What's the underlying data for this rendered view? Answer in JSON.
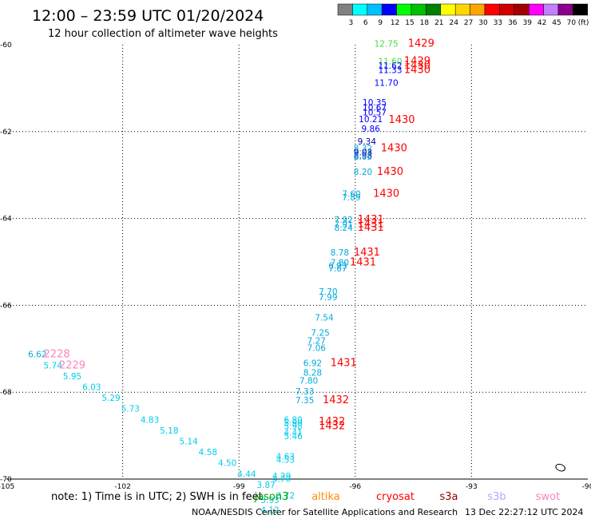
{
  "header": {
    "title": "12:00 – 23:59 UTC 01/20/2024",
    "subtitle": "12 hour collection of altimeter wave heights"
  },
  "legend": {
    "unit": "(ft)",
    "bins": [
      {
        "color": "#808080",
        "label": "3"
      },
      {
        "color": "#00ffff",
        "label": "6"
      },
      {
        "color": "#00bfff",
        "label": "9"
      },
      {
        "color": "#0000ff",
        "label": "12"
      },
      {
        "color": "#00ff00",
        "label": "15"
      },
      {
        "color": "#00c000",
        "label": "18"
      },
      {
        "color": "#008000",
        "label": "21"
      },
      {
        "color": "#ffff00",
        "label": "24"
      },
      {
        "color": "#ffd700",
        "label": "27"
      },
      {
        "color": "#ffa500",
        "label": "30"
      },
      {
        "color": "#ff0000",
        "label": "33"
      },
      {
        "color": "#d00000",
        "label": "36"
      },
      {
        "color": "#a00000",
        "label": "39"
      },
      {
        "color": "#ff00ff",
        "label": "42"
      },
      {
        "color": "#c080ff",
        "label": "45"
      },
      {
        "color": "#8b008b",
        "label": "70"
      },
      {
        "color": "#000000",
        "label": ""
      }
    ]
  },
  "axes": {
    "lon_ticks": [
      "-105",
      "-102",
      "-99",
      "-96",
      "-93",
      "-90"
    ],
    "lat_ticks": [
      "-60",
      "-62",
      "-64",
      "-66",
      "-68",
      "-70"
    ],
    "lon_range": [
      -105,
      -90
    ],
    "lat_range": [
      -60,
      -70
    ]
  },
  "chart_data": {
    "type": "scatter",
    "x_unit": "longitude",
    "y_unit": "latitude",
    "grid": true,
    "observations": [
      {
        "lon": -95.2,
        "lat": -60.05,
        "swh": "12.75",
        "color": "#44dd44"
      },
      {
        "lon": -95.1,
        "lat": -60.45,
        "swh": "11.60",
        "color": "#44dd44"
      },
      {
        "lon": -95.1,
        "lat": -60.55,
        "swh": "11.62",
        "color": "#0000ff"
      },
      {
        "lon": -95.1,
        "lat": -60.65,
        "swh": "11.33",
        "color": "#0000ff"
      },
      {
        "lon": -95.2,
        "lat": -60.95,
        "swh": "11.70",
        "color": "#0000ff"
      },
      {
        "lon": -95.5,
        "lat": -61.4,
        "swh": "10.35",
        "color": "#0000ff"
      },
      {
        "lon": -95.5,
        "lat": -61.52,
        "swh": "10.67",
        "color": "#0000ff"
      },
      {
        "lon": -95.5,
        "lat": -61.63,
        "swh": "10.57",
        "color": "#0000ff"
      },
      {
        "lon": -95.6,
        "lat": -61.78,
        "swh": "10.21",
        "color": "#0000ff"
      },
      {
        "lon": -95.6,
        "lat": -62.0,
        "swh": "9.86",
        "color": "#0000ff"
      },
      {
        "lon": -95.7,
        "lat": -62.3,
        "swh": "9.34",
        "color": "#0000aa"
      },
      {
        "lon": -95.8,
        "lat": -62.45,
        "swh": "8.32",
        "color": "#00aadd"
      },
      {
        "lon": -95.8,
        "lat": -62.55,
        "swh": "9.03",
        "color": "#0000aa"
      },
      {
        "lon": -95.8,
        "lat": -62.62,
        "swh": "8.98",
        "color": "#0000aa"
      },
      {
        "lon": -95.8,
        "lat": -62.65,
        "swh": "8.05",
        "color": "#00aadd"
      },
      {
        "lon": -95.8,
        "lat": -63.0,
        "swh": "8.20",
        "color": "#00aadd"
      },
      {
        "lon": -96.1,
        "lat": -63.5,
        "swh": "7.60",
        "color": "#00aadd"
      },
      {
        "lon": -96.1,
        "lat": -63.58,
        "swh": "7.89",
        "color": "#00aadd"
      },
      {
        "lon": -96.3,
        "lat": -64.1,
        "swh": "7.92",
        "color": "#00aadd"
      },
      {
        "lon": -96.3,
        "lat": -64.2,
        "swh": "7.91",
        "color": "#00aadd"
      },
      {
        "lon": -96.3,
        "lat": -64.28,
        "swh": "8.24",
        "color": "#00aadd"
      },
      {
        "lon": -96.4,
        "lat": -64.85,
        "swh": "8.78",
        "color": "#00aadd"
      },
      {
        "lon": -96.4,
        "lat": -65.08,
        "swh": "7.80",
        "color": "#00aadd"
      },
      {
        "lon": -96.45,
        "lat": -65.16,
        "swh": "6.93",
        "color": "#00aadd"
      },
      {
        "lon": -96.45,
        "lat": -65.22,
        "swh": "7.67",
        "color": "#00aadd"
      },
      {
        "lon": -96.7,
        "lat": -65.75,
        "swh": "7.70",
        "color": "#00aadd"
      },
      {
        "lon": -96.7,
        "lat": -65.88,
        "swh": "7.99",
        "color": "#00aadd"
      },
      {
        "lon": -96.8,
        "lat": -66.35,
        "swh": "7.54",
        "color": "#00aadd"
      },
      {
        "lon": -96.9,
        "lat": -66.7,
        "swh": "7.25",
        "color": "#00aadd"
      },
      {
        "lon": -97.0,
        "lat": -66.88,
        "swh": "7.27",
        "color": "#00aadd"
      },
      {
        "lon": -97.0,
        "lat": -67.05,
        "swh": "7.06",
        "color": "#00aadd"
      },
      {
        "lon": -97.1,
        "lat": -67.4,
        "swh": "6.92",
        "color": "#00aadd"
      },
      {
        "lon": -97.1,
        "lat": -67.62,
        "swh": "8.28",
        "color": "#00aadd"
      },
      {
        "lon": -97.2,
        "lat": -67.8,
        "swh": "7.80",
        "color": "#00aadd"
      },
      {
        "lon": -97.3,
        "lat": -68.05,
        "swh": "7.33",
        "color": "#00aadd"
      },
      {
        "lon": -97.3,
        "lat": -68.25,
        "swh": "7.35",
        "color": "#00aadd"
      },
      {
        "lon": -97.6,
        "lat": -68.7,
        "swh": "6.80",
        "color": "#00ccee"
      },
      {
        "lon": -97.6,
        "lat": -68.78,
        "swh": "5.90",
        "color": "#00ccee"
      },
      {
        "lon": -97.6,
        "lat": -68.85,
        "swh": "5.98",
        "color": "#00ccee"
      },
      {
        "lon": -97.6,
        "lat": -69.0,
        "swh": "4.41",
        "color": "#00ccee"
      },
      {
        "lon": -97.6,
        "lat": -69.08,
        "swh": "5.46",
        "color": "#00ccee"
      },
      {
        "lon": -97.8,
        "lat": -69.55,
        "swh": "4.63",
        "color": "#00ccee"
      },
      {
        "lon": -97.8,
        "lat": -69.62,
        "swh": "4.53",
        "color": "#00ccee"
      },
      {
        "lon": -97.9,
        "lat": -70.0,
        "swh": "4.29",
        "color": "#00ccee"
      },
      {
        "lon": -97.9,
        "lat": -70.06,
        "swh": "4.70",
        "color": "#00ccee"
      },
      {
        "lon": -98.2,
        "lat": -70.55,
        "swh": "3.93",
        "color": "#00ccee"
      },
      {
        "lon": -98.2,
        "lat": -70.78,
        "swh": "4.12",
        "color": "#00ccee"
      },
      {
        "lon": -104.2,
        "lat": -67.2,
        "swh": "6.62",
        "color": "#00aadd"
      },
      {
        "lon": -103.8,
        "lat": -67.45,
        "swh": "5.74",
        "color": "#00ccee"
      },
      {
        "lon": -103.3,
        "lat": -67.7,
        "swh": "5.95",
        "color": "#00ccee"
      },
      {
        "lon": -102.8,
        "lat": -67.95,
        "swh": "6.03",
        "color": "#00ccee"
      },
      {
        "lon": -102.3,
        "lat": -68.2,
        "swh": "5.29",
        "color": "#00ccee"
      },
      {
        "lon": -101.8,
        "lat": -68.45,
        "swh": "5.73",
        "color": "#00ccee"
      },
      {
        "lon": -101.3,
        "lat": -68.7,
        "swh": "4.83",
        "color": "#00ccee"
      },
      {
        "lon": -100.8,
        "lat": -68.95,
        "swh": "5.18",
        "color": "#00ccee"
      },
      {
        "lon": -100.3,
        "lat": -69.2,
        "swh": "5.14",
        "color": "#00ccee"
      },
      {
        "lon": -99.8,
        "lat": -69.45,
        "swh": "4.58",
        "color": "#00ccee"
      },
      {
        "lon": -99.3,
        "lat": -69.7,
        "swh": "4.50",
        "color": "#00ccee"
      },
      {
        "lon": -98.8,
        "lat": -69.95,
        "swh": "4.44",
        "color": "#00ccee"
      },
      {
        "lon": -98.3,
        "lat": -70.2,
        "swh": "3.87",
        "color": "#00ccee"
      },
      {
        "lon": -97.8,
        "lat": -70.45,
        "swh": "3.72",
        "color": "#00ccee"
      }
    ],
    "time_labels": [
      {
        "lon": -94.3,
        "lat": -60.05,
        "text": "1429"
      },
      {
        "lon": -94.4,
        "lat": -60.45,
        "text": "1429"
      },
      {
        "lon": -94.4,
        "lat": -60.55,
        "text": "1430"
      },
      {
        "lon": -94.4,
        "lat": -60.65,
        "text": "1430"
      },
      {
        "lon": -94.8,
        "lat": -61.8,
        "text": "1430"
      },
      {
        "lon": -95.0,
        "lat": -62.45,
        "text": "1430"
      },
      {
        "lon": -95.1,
        "lat": -63.0,
        "text": "1430"
      },
      {
        "lon": -95.2,
        "lat": -63.5,
        "text": "1430"
      },
      {
        "lon": -95.6,
        "lat": -64.1,
        "text": "1431"
      },
      {
        "lon": -95.6,
        "lat": -64.2,
        "text": "1431"
      },
      {
        "lon": -95.6,
        "lat": -64.28,
        "text": "1431"
      },
      {
        "lon": -95.7,
        "lat": -64.85,
        "text": "1431"
      },
      {
        "lon": -95.8,
        "lat": -65.08,
        "text": "1431"
      },
      {
        "lon": -96.3,
        "lat": -67.4,
        "text": "1431"
      },
      {
        "lon": -96.5,
        "lat": -68.25,
        "text": "1432"
      },
      {
        "lon": -96.6,
        "lat": -68.75,
        "text": "1432"
      },
      {
        "lon": -96.6,
        "lat": -68.85,
        "text": "1432"
      },
      {
        "lon": -103.7,
        "lat": -67.2,
        "text": "2228"
      },
      {
        "lon": -103.3,
        "lat": -67.45,
        "text": "2229"
      }
    ],
    "land_outlines": [
      {
        "lon": -90.5,
        "lat": -69.7
      }
    ]
  },
  "footer": {
    "note": "note: 1) Time is in UTC; 2) SWH is in feet",
    "missions": [
      {
        "name": "jason3",
        "color": "#00aa00"
      },
      {
        "name": "altika",
        "color": "#ff8c00"
      },
      {
        "name": "cryosat",
        "color": "#ff0000"
      },
      {
        "name": "s3a",
        "color": "#8b0000"
      },
      {
        "name": "s3b",
        "color": "#c0a0ff"
      },
      {
        "name": "swot",
        "color": "#ff80c0"
      }
    ],
    "credit": "NOAA/NESDIS Center for Satellite Applications and Research",
    "generated": "13 Dec 22:27:12 UTC 2024"
  }
}
